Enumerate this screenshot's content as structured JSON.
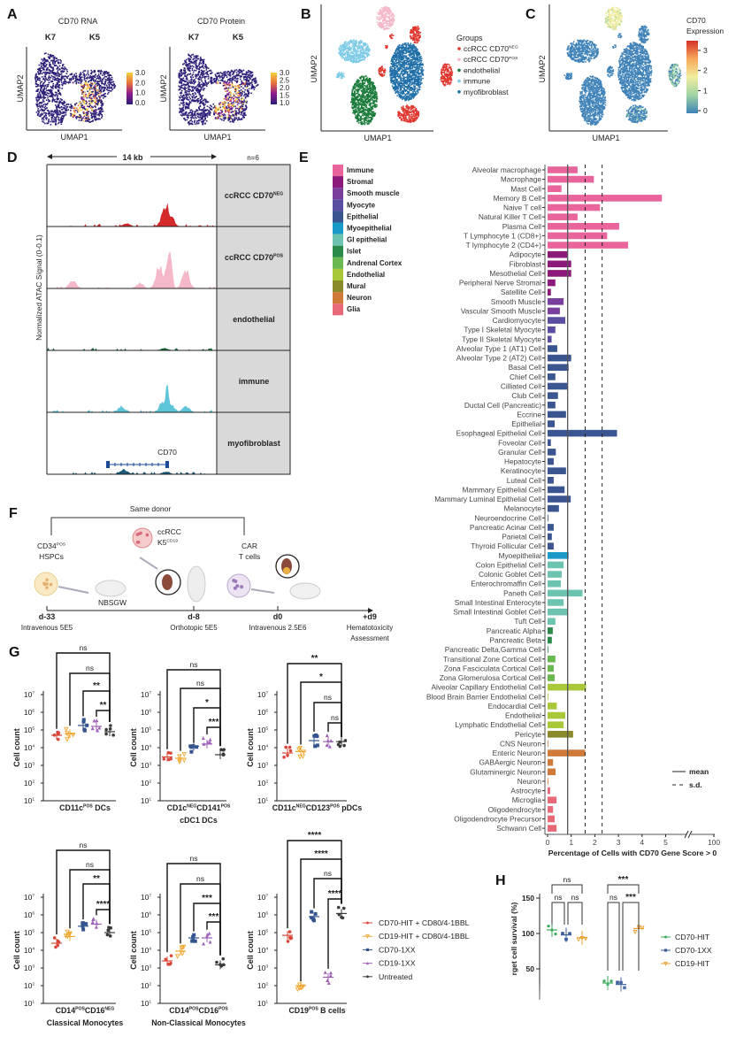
{
  "panel_labels": {
    "A": "A",
    "B": "B",
    "C": "C",
    "D": "D",
    "E": "E",
    "F": "F",
    "G": "G",
    "H": "H"
  },
  "panel_a": {
    "plots": [
      {
        "title": "CD70 RNA",
        "left_label": "K7",
        "right_label": "K5",
        "colorbar_ticks": [
          "3.0",
          "2.0",
          "1.0",
          "0.0"
        ]
      },
      {
        "title": "CD70 Protein",
        "left_label": "K7",
        "right_label": "K5",
        "colorbar_ticks": [
          "3.0",
          "2.5",
          "2.0",
          "1.5",
          "1.0"
        ]
      }
    ],
    "xlabel": "UMAP1",
    "ylabel": "UMAP2",
    "colormap": [
      "#2c1f78",
      "#8b1a8f",
      "#e8703a",
      "#f5d040"
    ]
  },
  "panel_b": {
    "xlabel": "UMAP1",
    "ylabel": "UMAP2",
    "legend_title": "Groups",
    "groups": [
      {
        "label": [
          {
            "text": "ccRCC CD70",
            "sup": "NEG"
          }
        ],
        "color": "#e0342c"
      },
      {
        "label": [
          {
            "text": "ccRCC CD70",
            "sup": "POS"
          }
        ],
        "color": "#f4b8c8"
      },
      {
        "label": [
          {
            "text": "endothelial"
          }
        ],
        "color": "#1a7a3a"
      },
      {
        "label": [
          {
            "text": "immune"
          }
        ],
        "color": "#7ecbe6"
      },
      {
        "label": [
          {
            "text": "myofibroblast"
          }
        ],
        "color": "#1f6fa8"
      }
    ]
  },
  "panel_c": {
    "xlabel": "UMAP1",
    "ylabel": "UMAP2",
    "colorbar_title_1": "CD70",
    "colorbar_title_2": "Expression",
    "colorbar_ticks": [
      "3",
      "2",
      "1",
      "0"
    ],
    "colormap": [
      "#3f82b8",
      "#9fd4a4",
      "#f2eda0",
      "#f7a85a",
      "#d7302a"
    ]
  },
  "panel_d": {
    "scale_label": "14 kb",
    "n_label": "n=6",
    "ylabel": "Normalized ATAC Signal (0-0.1)",
    "tracks": [
      {
        "label": [
          {
            "text": "ccRCC CD70",
            "sup": "NEG"
          }
        ],
        "color": "#d42a2a"
      },
      {
        "label": [
          {
            "text": "ccRCC CD70",
            "sup": "POS"
          }
        ],
        "color": "#f4b8c8"
      },
      {
        "label": [
          {
            "text": "endothelial"
          }
        ],
        "color": "#1a6a3a"
      },
      {
        "label": [
          {
            "text": "immune"
          }
        ],
        "color": "#5ec4d8"
      },
      {
        "label": [
          {
            "text": "myofibroblast"
          }
        ],
        "color": "#1a5a78"
      }
    ],
    "gene": "CD70"
  },
  "panel_e_legend": [
    {
      "name": "Immune",
      "color": "#e8649b"
    },
    {
      "name": "Stromal",
      "color": "#8b1a7a"
    },
    {
      "name": "Smooth muscle",
      "color": "#7a3f9c"
    },
    {
      "name": "Myocyte",
      "color": "#5a4ea2"
    },
    {
      "name": "Epithelial",
      "color": "#3b5590"
    },
    {
      "name": "Myoepithelial",
      "color": "#1a9ac8"
    },
    {
      "name": "GI epithelial",
      "color": "#6cc4b0"
    },
    {
      "name": "Islet",
      "color": "#2a8a4a"
    },
    {
      "name": "Andrenal Cortex",
      "color": "#6ab850"
    },
    {
      "name": "Endothelial",
      "color": "#a8c83a"
    },
    {
      "name": "Mural",
      "color": "#8a8a2a"
    },
    {
      "name": "Neuron",
      "color": "#d07a3a"
    },
    {
      "name": "Glia",
      "color": "#e86a78"
    }
  ],
  "panel_e_stats": {
    "mean_label": "mean",
    "sd_label": "s.d.",
    "mean": 0.85,
    "sd_lines": [
      1.59,
      2.31
    ]
  },
  "panel_f": {
    "bracket_label": "Same donor",
    "cells_1": [
      {
        "text": "CD34",
        "sup": "POS"
      }
    ],
    "cells_1b": "HSPCs",
    "mouse_strain": "NBSGW",
    "tumor_1": "ccRCC",
    "tumor_2": [
      {
        "text": "K5",
        "sup": "CD19"
      }
    ],
    "car_1": "CAR",
    "car_2": "T cells",
    "timepoints": [
      {
        "day": "d-33",
        "desc": "Intravenous 5E5"
      },
      {
        "day": "d-8",
        "desc": "Orthotopic 5E5"
      },
      {
        "day": "d0",
        "desc": "Intravenous 2.5E6"
      },
      {
        "day": "+d9",
        "desc": "Hematotoxicity",
        "desc2": "Assessment"
      }
    ]
  },
  "panel_g_legend": [
    {
      "name": "CD70-HIT + CD80/4-1BBL",
      "color": "#d9473a",
      "marker": "circle"
    },
    {
      "name": "CD19-HIT + CD80/4-1BBL",
      "color": "#f0a830",
      "marker": "triangle-down"
    },
    {
      "name": "CD70-1XX",
      "color": "#34548f",
      "marker": "square"
    },
    {
      "name": "CD19-1XX",
      "color": "#a062b8",
      "marker": "triangle-up"
    },
    {
      "name": "Untreated",
      "color": "#3a3a3a",
      "marker": "circle"
    }
  ],
  "panel_h_legend": [
    {
      "name": "CD70-HIT",
      "color": "#3aaa5a",
      "marker": "circle"
    },
    {
      "name": "CD70-1XX",
      "color": "#3a5a9a",
      "marker": "square"
    },
    {
      "name": "CD19-HIT",
      "color": "#e8a030",
      "marker": "triangle-down"
    }
  ],
  "chart_data": [
    {
      "panel": "E",
      "type": "bar",
      "orientation": "horizontal",
      "xlabel": "Percentage of Cells with CD70 Gene Score > 0",
      "xticks": [
        "0",
        "1",
        "2",
        "3",
        "4",
        "5",
        "100"
      ],
      "axis_break": true,
      "categories": [
        {
          "name": "Alveolar macrophage",
          "group": "Immune",
          "value": 1.27
        },
        {
          "name": "Macrophage",
          "group": "Immune",
          "value": 1.96
        },
        {
          "name": "Mast Cell",
          "group": "Immune",
          "value": 0.59
        },
        {
          "name": "Memory B Cell",
          "group": "Immune",
          "value": 4.84
        },
        {
          "name": "Naive T cell",
          "group": "Immune",
          "value": 2.22
        },
        {
          "name": "Natural Killer T Cell",
          "group": "Immune",
          "value": 1.27
        },
        {
          "name": "Plasma Cell",
          "group": "Immune",
          "value": 3.03
        },
        {
          "name": "T Lymphocyte 1 (CD8+)",
          "group": "Immune",
          "value": 2.52
        },
        {
          "name": "T lymphocyte 2 (CD4+)",
          "group": "Immune",
          "value": 3.41
        },
        {
          "name": "Adipocyte",
          "group": "Stromal",
          "value": 0.85
        },
        {
          "name": "Fibroblast",
          "group": "Stromal",
          "value": 1.0
        },
        {
          "name": "Mesothelial Cell",
          "group": "Stromal",
          "value": 1.0
        },
        {
          "name": "Peripheral Nerve Stromal",
          "group": "Stromal",
          "value": 0.33
        },
        {
          "name": "Satellite Cell",
          "group": "Stromal",
          "value": 0.14
        },
        {
          "name": "Smooth Muscle",
          "group": "Smooth muscle",
          "value": 0.68
        },
        {
          "name": "Vascular Smooth Muscle",
          "group": "Smooth muscle",
          "value": 0.52
        },
        {
          "name": "Cardiomyocyte",
          "group": "Myocyte",
          "value": 0.75
        },
        {
          "name": "Type I Skeletal Myocyte",
          "group": "Myocyte",
          "value": 0.33
        },
        {
          "name": "Type II Skeletal Myocyte",
          "group": "Myocyte",
          "value": 0.17
        },
        {
          "name": "Alveolar Type 1 (AT1) Cell",
          "group": "Epithelial",
          "value": 0.41
        },
        {
          "name": "Alveolar Type 2 (AT2) Cell",
          "group": "Epithelial",
          "value": 1.0
        },
        {
          "name": "Basal Cell",
          "group": "Epithelial",
          "value": 0.89
        },
        {
          "name": "Chief Cell",
          "group": "Epithelial",
          "value": 0.33
        },
        {
          "name": "Cilliated Cell",
          "group": "Epithelial",
          "value": 0.86
        },
        {
          "name": "Club Cell",
          "group": "Epithelial",
          "value": 0.44
        },
        {
          "name": "Ductal Cell (Pancreatic)",
          "group": "Epithelial",
          "value": 0.33
        },
        {
          "name": "Eccrine",
          "group": "Epithelial",
          "value": 0.78
        },
        {
          "name": "Epithelial",
          "group": "Epithelial",
          "value": 0.3
        },
        {
          "name": "Esophageal Epithelial Cell",
          "group": "Epithelial",
          "value": 2.94
        },
        {
          "name": "Foveolar Cell",
          "group": "Epithelial",
          "value": 0.14
        },
        {
          "name": "Granular Cell",
          "group": "Epithelial",
          "value": 0.35
        },
        {
          "name": "Hepatocyte",
          "group": "Epithelial",
          "value": 0.26
        },
        {
          "name": "Keratinocyte",
          "group": "Epithelial",
          "value": 0.78
        },
        {
          "name": "Luteal Cell",
          "group": "Epithelial",
          "value": 0.26
        },
        {
          "name": "Mammary Epithelial Cell",
          "group": "Epithelial",
          "value": 0.72
        },
        {
          "name": "Mammary Luminal Epithelial Cell",
          "group": "Epithelial",
          "value": 0.98
        },
        {
          "name": "Melanocyte",
          "group": "Epithelial",
          "value": 0.48
        },
        {
          "name": "Neuroendocrine Cell",
          "group": "Epithelial",
          "value": 0.03
        },
        {
          "name": "Pancreatic Acinar Cell",
          "group": "Epithelial",
          "value": 0.26
        },
        {
          "name": "Parietal Cell",
          "group": "Epithelial",
          "value": 0.18
        },
        {
          "name": "Thyroid Follicular Cell",
          "group": "Epithelial",
          "value": 0.26
        },
        {
          "name": "Myoepithelial",
          "group": "Myoepithelial",
          "value": 0.89
        },
        {
          "name": "Colon Epithelial Cell",
          "group": "GI epithelial",
          "value": 0.68
        },
        {
          "name": "Colonic Goblet Cell",
          "group": "GI epithelial",
          "value": 0.6
        },
        {
          "name": "Enterochromaffin Cell",
          "group": "GI epithelial",
          "value": 0.56
        },
        {
          "name": "Paneth Cell",
          "group": "GI epithelial",
          "value": 1.48
        },
        {
          "name": "Small Intestinal Enterocyte",
          "group": "GI epithelial",
          "value": 0.68
        },
        {
          "name": "Small Intestinal Goblet Cell",
          "group": "GI epithelial",
          "value": 0.85
        },
        {
          "name": "Tuft Cell",
          "group": "GI epithelial",
          "value": 0.33
        },
        {
          "name": "Pancreatic Alpha",
          "group": "Islet",
          "value": 0.22
        },
        {
          "name": "Pancreatic Beta",
          "group": "Islet",
          "value": 0.18
        },
        {
          "name": "Pancreatic Delta,Gamma Cell",
          "group": "Islet",
          "value": 0.03
        },
        {
          "name": "Transitional Zone Cortical Cell",
          "group": "Andrenal Cortex",
          "value": 0.33
        },
        {
          "name": "Zona Fasciculata Cortical Cell",
          "group": "Andrenal Cortex",
          "value": 0.26
        },
        {
          "name": "Zona Glomerulosa Cortical Cell",
          "group": "Andrenal Cortex",
          "value": 0.3
        },
        {
          "name": "Alveolar Capillary Endothelial Cell",
          "group": "Endothelial",
          "value": 1.63
        },
        {
          "name": "Blood Brain Barrier Endothelial Cell",
          "group": "Endothelial",
          "value": 0.03
        },
        {
          "name": "Endocardial Cell",
          "group": "Endothelial",
          "value": 0.39
        },
        {
          "name": "Endothelial",
          "group": "Endothelial",
          "value": 0.75
        },
        {
          "name": "Lymphatic Endothelial Cell",
          "group": "Endothelial",
          "value": 0.68
        },
        {
          "name": "Pericyte",
          "group": "Mural",
          "value": 1.08
        },
        {
          "name": "CNS Neuron",
          "group": "Neuron",
          "value": 0.03
        },
        {
          "name": "Enteric Neuron",
          "group": "Neuron",
          "value": 1.59
        },
        {
          "name": "GABAergic Neuron",
          "group": "Neuron",
          "value": 0.23
        },
        {
          "name": "Glutaminergic Neuron",
          "group": "Neuron",
          "value": 0.34
        },
        {
          "name": "Neuron",
          "group": "Neuron",
          "value": 0.03
        },
        {
          "name": "Astrocyte",
          "group": "Glia",
          "value": 0.11
        },
        {
          "name": "Microglia",
          "group": "Glia",
          "value": 0.38
        },
        {
          "name": "Oligodendrocyte",
          "group": "Glia",
          "value": 0.23
        },
        {
          "name": "Oligodendrocyte Precursor",
          "group": "Glia",
          "value": 0.3
        },
        {
          "name": "Schwann Cell",
          "group": "Glia",
          "value": 0.38
        }
      ]
    },
    {
      "panel": "G",
      "type": "scatter",
      "yscale": "log",
      "ylim": [
        10,
        10000000
      ],
      "ylabel": "Cell count",
      "ytick_labels": [
        {
          "text": "10",
          "sup": "7"
        },
        {
          "text": "10",
          "sup": "6"
        },
        {
          "text": "10",
          "sup": "5"
        },
        {
          "text": "10",
          "sup": "4"
        },
        {
          "text": "10",
          "sup": "3"
        },
        {
          "text": "10",
          "sup": "2"
        },
        {
          "text": "10",
          "sup": "1"
        }
      ],
      "groups": [
        "CD70-HIT + CD80/4-1BBL",
        "CD19-HIT + CD80/4-1BBL",
        "CD70-1XX",
        "CD19-1XX",
        "Untreated"
      ],
      "comparison_reference": "Untreated",
      "subplots": [
        {
          "title": [
            {
              "text": "CD11c",
              "sup": "POS"
            },
            {
              "text": " DCs"
            }
          ],
          "title_line2": "",
          "means": [
            50000,
            60000,
            180000,
            160000,
            80000
          ],
          "significance": [
            "ns",
            "ns",
            "**",
            "**"
          ]
        },
        {
          "title": [
            {
              "text": "CD1c",
              "sup": "NEG"
            },
            {
              "text": "CD141",
              "sup": "POS"
            }
          ],
          "title_line2": "cDC1 DCs",
          "means": [
            3000,
            2500,
            12000,
            16000,
            4000
          ],
          "significance": [
            "ns",
            "ns",
            "*",
            "***"
          ]
        },
        {
          "title": [
            {
              "text": "CD11c",
              "sup": "NEG"
            },
            {
              "text": "CD123",
              "sup": "POS"
            },
            {
              "text": " pDCs"
            }
          ],
          "title_line2": "",
          "means": [
            5000,
            6000,
            25000,
            22000,
            22000
          ],
          "significance": [
            "**",
            "*",
            "ns",
            "ns"
          ]
        },
        {
          "title": [
            {
              "text": "CD14",
              "sup": "POS"
            },
            {
              "text": "CD16",
              "sup": "NEG"
            }
          ],
          "title_line2": "Classical Monocytes",
          "means": [
            25000,
            60000,
            230000,
            300000,
            100000
          ],
          "significance": [
            "ns",
            "ns",
            "**",
            "****"
          ]
        },
        {
          "title": [
            {
              "text": "CD14",
              "sup": "POS"
            },
            {
              "text": "CD16",
              "sup": "POS"
            }
          ],
          "title_line2": "Non-Classical Monocytes",
          "means": [
            2500,
            9000,
            50000,
            50000,
            1500
          ],
          "significance": [
            "ns",
            "ns",
            "***",
            "***"
          ]
        },
        {
          "title": [
            {
              "text": "CD19",
              "sup": "POS"
            },
            {
              "text": " B cells"
            }
          ],
          "title_line2": "",
          "means": [
            70000,
            100,
            800000,
            300,
            1200000
          ],
          "significance": [
            "****",
            "****",
            "ns",
            "****"
          ]
        }
      ]
    },
    {
      "panel": "H",
      "type": "scatter",
      "ylabel": "rget cell survival (%)",
      "yticks": [
        "150",
        "100",
        "50"
      ],
      "ylim_visible": [
        25,
        150
      ],
      "series": [
        {
          "name": "CD70-HIT",
          "values": [
            105,
            30
          ]
        },
        {
          "name": "CD70-1XX",
          "values": [
            98,
            28
          ]
        },
        {
          "name": "CD19-HIT",
          "values": [
            94,
            107
          ]
        }
      ],
      "comparisons": [
        [
          {
            "between": [
              "CD70-HIT",
              "CD19-HIT"
            ],
            "label": "ns"
          },
          {
            "between": [
              "CD70-HIT",
              "CD70-1XX"
            ],
            "label": "ns"
          },
          {
            "between": [
              "CD70-1XX",
              "CD19-HIT"
            ],
            "label": "ns"
          }
        ],
        [
          {
            "between": [
              "CD70-HIT",
              "CD19-HIT"
            ],
            "label": "***"
          },
          {
            "between": [
              "CD70-HIT",
              "CD70-1XX"
            ],
            "label": "ns"
          },
          {
            "between": [
              "CD70-1XX",
              "CD19-HIT"
            ],
            "label": "***"
          }
        ]
      ]
    }
  ]
}
